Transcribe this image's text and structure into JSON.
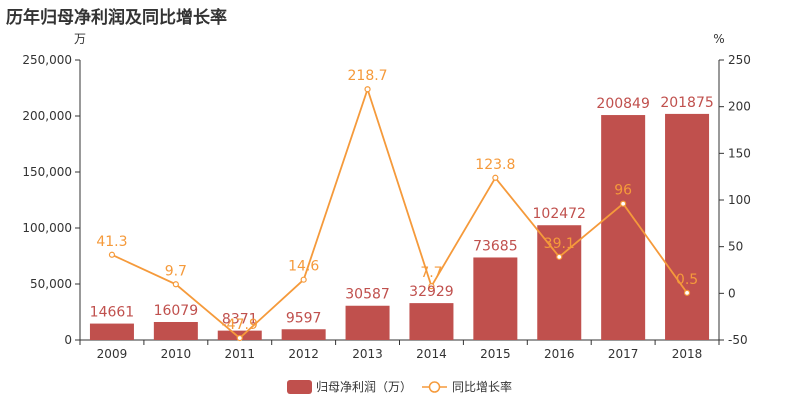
{
  "title": "历年归母净利润及同比增长率",
  "chart_data": {
    "type": "bar",
    "title": "历年归母净利润及同比增长率",
    "categories": [
      "2009",
      "2010",
      "2011",
      "2012",
      "2013",
      "2014",
      "2015",
      "2016",
      "2017",
      "2018"
    ],
    "series": [
      {
        "name": "归母净利润（万）",
        "type": "bar",
        "axis": "left",
        "values": [
          14661,
          16079,
          8371,
          9597,
          30587,
          32929,
          73685,
          102472,
          200849,
          201875
        ],
        "labels": [
          "14661",
          "16079",
          "8371",
          "9597",
          "30587",
          "32929",
          "73685",
          "102472",
          "200849",
          "201875"
        ]
      },
      {
        "name": "同比增长率",
        "type": "line",
        "axis": "right",
        "values": [
          41.3,
          9.7,
          -47.9,
          14.6,
          218.7,
          7.7,
          123.8,
          39.1,
          96,
          0.5
        ],
        "labels": [
          "41.3",
          "9.7",
          "-47.9",
          "14.6",
          "218.7",
          "7.7",
          "123.8",
          "39.1",
          "96",
          "0.5"
        ]
      }
    ],
    "y_left": {
      "unit": "万",
      "min": 0,
      "max": 250000,
      "ticks": [
        0,
        50000,
        100000,
        150000,
        200000,
        250000
      ],
      "tick_labels": [
        "0",
        "50,000",
        "100,000",
        "150,000",
        "200,000",
        "250,000"
      ]
    },
    "y_right": {
      "unit": "%",
      "min": -50,
      "max": 250,
      "ticks": [
        -50,
        0,
        50,
        100,
        150,
        200,
        250
      ],
      "tick_labels": [
        "-50",
        "0",
        "50",
        "100",
        "150",
        "200",
        "250"
      ]
    },
    "grid": false,
    "legend_position": "bottom",
    "colors": {
      "bar": "#c0504d",
      "line": "#f59a3b",
      "axis": "#333333"
    }
  }
}
